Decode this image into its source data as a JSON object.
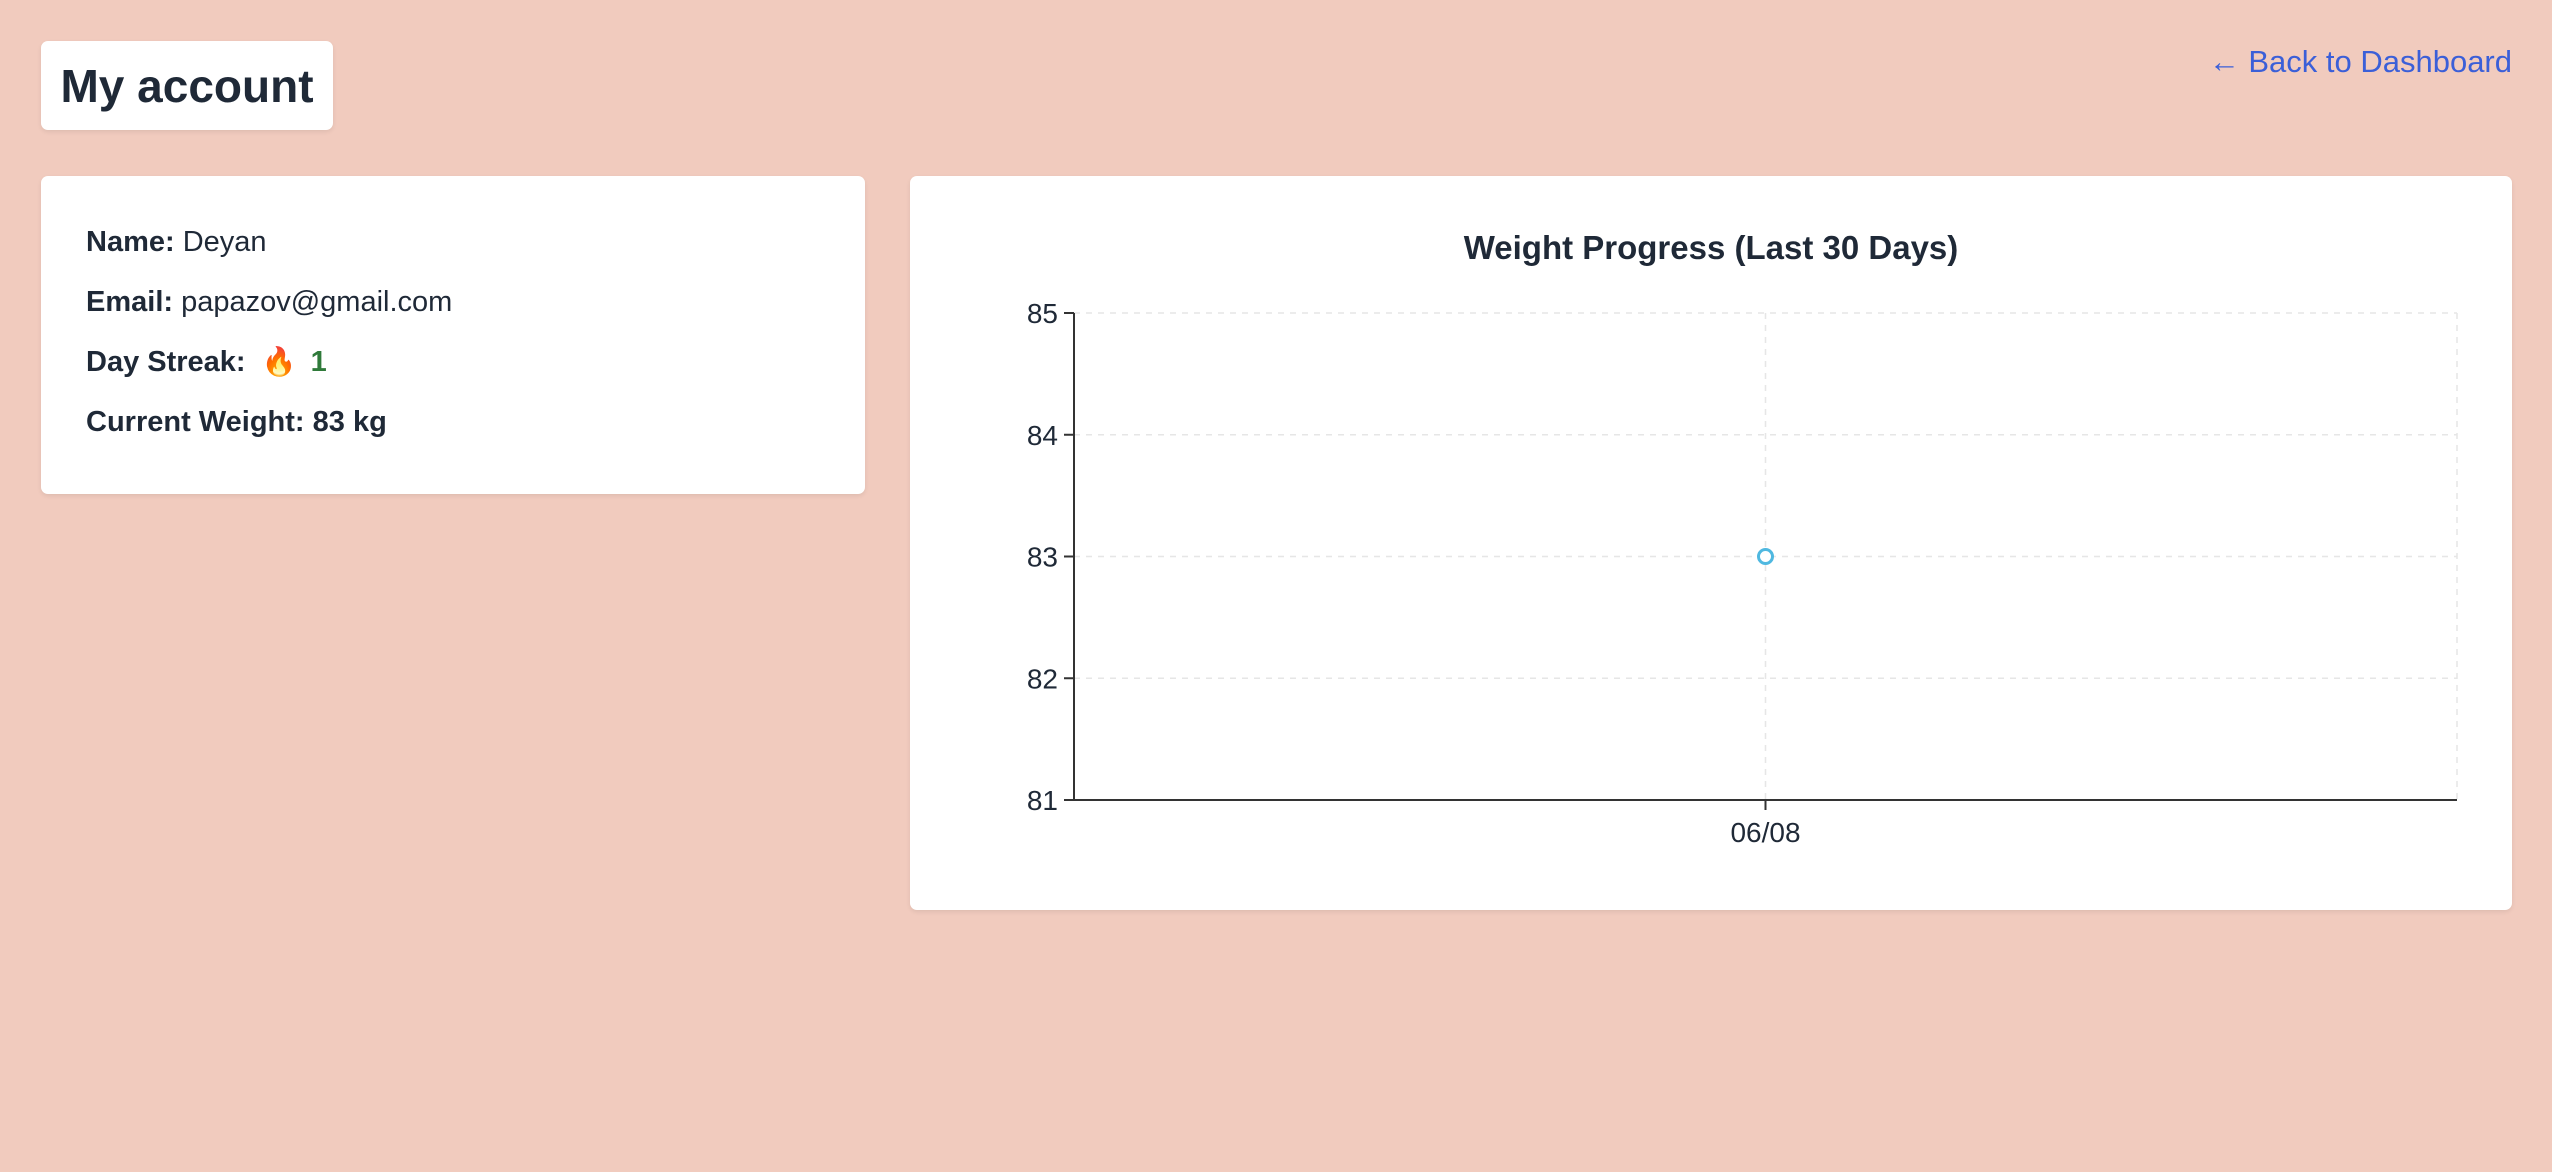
{
  "header": {
    "title": "My account",
    "back_link": "← Back to Dashboard"
  },
  "profile": {
    "name_label": "Name:",
    "name_value": "Deyan",
    "email_label": "Email:",
    "email_value": "papazov@gmail.com",
    "streak_label": "Day Streak:",
    "streak_icon": "flame-icon",
    "streak_value": "1",
    "weight_label": "Current Weight:",
    "weight_value": "83 kg"
  },
  "colors": {
    "background": "#f1cbbe",
    "link": "#3b5fd8",
    "point": "#4fb8e0",
    "streak": "#2f7a3a"
  },
  "chart_data": {
    "type": "line",
    "title": "Weight Progress (Last 30 Days)",
    "xlabel": "",
    "ylabel": "",
    "categories": [
      "06/08"
    ],
    "series": [
      {
        "values": [
          83
        ]
      }
    ],
    "ylim": [
      81,
      85
    ],
    "yticks": [
      81,
      82,
      83,
      84,
      85
    ],
    "grid": true,
    "legend": "none"
  }
}
